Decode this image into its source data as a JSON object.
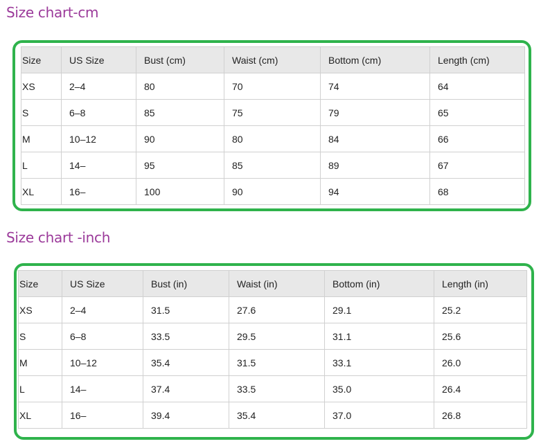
{
  "cm_chart": {
    "title": "Size chart-cm",
    "headers": [
      "Size",
      "US Size",
      "Bust (cm)",
      "Waist (cm)",
      "Bottom (cm)",
      "Length (cm)"
    ],
    "rows": [
      [
        "XS",
        "2–4",
        "80",
        "70",
        "74",
        "64"
      ],
      [
        "S",
        "6–8",
        "85",
        "75",
        "79",
        "65"
      ],
      [
        "M",
        "10–12",
        "90",
        "80",
        "84",
        "66"
      ],
      [
        "L",
        "14–",
        "95",
        "85",
        "89",
        "67"
      ],
      [
        "XL",
        "16–",
        "100",
        "90",
        "94",
        "68"
      ]
    ]
  },
  "inch_chart": {
    "title": "Size chart -inch",
    "headers": [
      "Size",
      "US Size",
      "Bust (in)",
      "Waist (in)",
      "Bottom (in)",
      "Length (in)"
    ],
    "rows": [
      [
        "XS",
        "2–4",
        "31.5",
        "27.6",
        "29.1",
        "25.2"
      ],
      [
        "S",
        "6–8",
        "33.5",
        "29.5",
        "31.1",
        "25.6"
      ],
      [
        "M",
        "10–12",
        "35.4",
        "31.5",
        "33.1",
        "26.0"
      ],
      [
        "L",
        "14–",
        "37.4",
        "33.5",
        "35.0",
        "26.4"
      ],
      [
        "XL",
        "16–",
        "39.4",
        "35.4",
        "37.0",
        "26.8"
      ]
    ]
  },
  "colors": {
    "title": "#9b3a9a",
    "frame": "#2fb34c",
    "header_bg": "#e8e8e8"
  }
}
